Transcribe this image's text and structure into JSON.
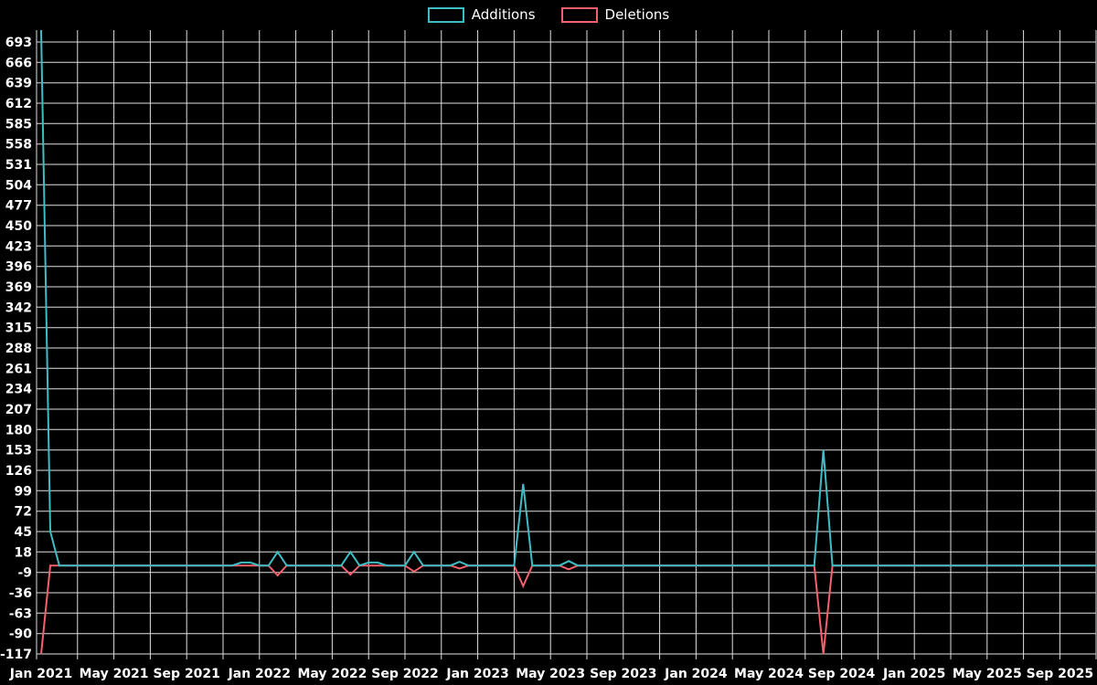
{
  "page": {
    "background": "#000000"
  },
  "chart_data": {
    "type": "line",
    "legend_position": "top-center",
    "x_axis": {
      "tick_labels": [
        "Jan 2021",
        "May 2021",
        "Sep 2021",
        "Jan 2022",
        "May 2022",
        "Sep 2022",
        "Jan 2023",
        "May 2023",
        "Sep 2023",
        "Jan 2024",
        "May 2024",
        "Sep 2024",
        "Jan 2025",
        "May 2025",
        "Sep 2025"
      ],
      "months_per_tick": 4,
      "start": "Jan 2021",
      "end": "Sep 2025"
    },
    "y_axis": {
      "tick_labels": [
        693,
        666,
        639,
        612,
        585,
        558,
        531,
        504,
        477,
        450,
        423,
        396,
        369,
        342,
        315,
        288,
        261,
        234,
        207,
        180,
        153,
        126,
        99,
        72,
        45,
        18,
        -9,
        -36,
        -63,
        -90,
        -117
      ],
      "min": -117,
      "max": 693,
      "step": 27
    },
    "grid": {
      "color": "#e0e0e0",
      "vertical_every_months": 2
    },
    "x_encoding_note": "series point index i is in half-months; i=0 corresponds to Jan 2021; value is 0 everywhere not listed",
    "total_half_months": 113,
    "series": [
      {
        "name": "Additions",
        "color": "#3fbdc4",
        "default_value": 0,
        "points": [
          {
            "i": 0,
            "v": 710
          },
          {
            "i": 1,
            "v": 45
          },
          {
            "i": 22,
            "v": 4
          },
          {
            "i": 23,
            "v": 4
          },
          {
            "i": 26,
            "v": 18
          },
          {
            "i": 34,
            "v": 18
          },
          {
            "i": 36,
            "v": 4
          },
          {
            "i": 37,
            "v": 4
          },
          {
            "i": 41,
            "v": 18
          },
          {
            "i": 46,
            "v": 5
          },
          {
            "i": 53,
            "v": 108
          },
          {
            "i": 58,
            "v": 6
          },
          {
            "i": 86,
            "v": 153
          }
        ]
      },
      {
        "name": "Deletions",
        "color": "#f4606c",
        "default_value": 0,
        "points": [
          {
            "i": 0,
            "v": -117
          },
          {
            "i": 26,
            "v": -13
          },
          {
            "i": 34,
            "v": -12
          },
          {
            "i": 41,
            "v": -8
          },
          {
            "i": 46,
            "v": -4
          },
          {
            "i": 53,
            "v": -27
          },
          {
            "i": 58,
            "v": -5
          },
          {
            "i": 86,
            "v": -117
          }
        ]
      }
    ]
  }
}
